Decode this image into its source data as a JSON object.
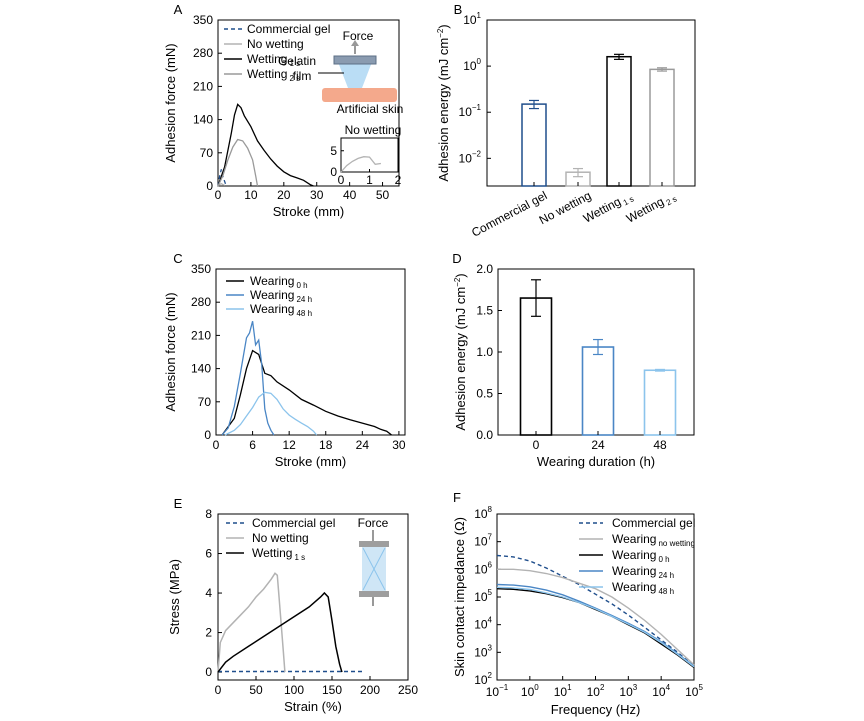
{
  "colors": {
    "black": "#000000",
    "blue": "#1f4e8c",
    "mid_blue": "#4a86c5",
    "light_blue": "#8cc4ec",
    "gray": "#9a9a9a",
    "light_gray": "#b3b3b3"
  },
  "chart_data": [
    {
      "id": "A",
      "type": "line",
      "panel_label": "A",
      "xlabel": "Stroke (mm)",
      "ylabel": "Adhesion force (mN)",
      "xlim": [
        0,
        55
      ],
      "ylim": [
        0,
        350
      ],
      "xticks": [
        "0",
        "10",
        "20",
        "30",
        "40",
        "50"
      ],
      "yticks": [
        "0",
        "70",
        "140",
        "210",
        "280",
        "350"
      ],
      "legend": [
        {
          "name": "Commercial gel",
          "sub": ""
        },
        {
          "name": "No wetting",
          "sub": ""
        },
        {
          "name": "Wetting",
          "sub": "1 s"
        },
        {
          "name": "Wetting",
          "sub": "2 s"
        }
      ],
      "series": [
        {
          "name": "Commercial gel",
          "x": [
            0,
            0.5,
            1,
            1.5,
            2,
            2.5
          ],
          "y": [
            0,
            20,
            35,
            20,
            10,
            0
          ]
        },
        {
          "name": "No wetting",
          "x": [
            0,
            0.5,
            1,
            1.5,
            2
          ],
          "y": [
            0,
            3,
            5,
            3,
            1
          ]
        },
        {
          "name": "Wetting 1 s",
          "x": [
            0,
            2,
            4,
            5,
            6,
            7,
            8,
            10,
            12,
            14,
            16,
            18,
            20,
            22,
            24,
            26,
            28,
            29
          ],
          "y": [
            0,
            40,
            110,
            150,
            172,
            165,
            148,
            125,
            95,
            75,
            57,
            42,
            30,
            22,
            17,
            12,
            3,
            0
          ]
        },
        {
          "name": "Wetting 2 s",
          "x": [
            0,
            1.5,
            3,
            4.5,
            6,
            7.5,
            9,
            10.5,
            11.5,
            12
          ],
          "y": [
            0,
            22,
            55,
            82,
            98,
            95,
            80,
            55,
            20,
            0
          ]
        }
      ],
      "annotations": [
        "Force",
        "Gelatin",
        "film",
        "Artificial skin"
      ],
      "inset": {
        "title": "No wetting",
        "xlim": [
          0,
          2
        ],
        "ylim": [
          0,
          8
        ],
        "xticks": [
          "0",
          "1",
          "2"
        ],
        "yticks": [
          "0",
          "5"
        ],
        "series": {
          "x": [
            0,
            0.2,
            0.4,
            0.6,
            0.8,
            1.0,
            1.2,
            1.4
          ],
          "y": [
            0,
            1.5,
            2.5,
            3.2,
            3.6,
            3.5,
            1.8,
            2.0
          ]
        }
      }
    },
    {
      "id": "B",
      "type": "bar",
      "panel_label": "B",
      "ylabel_main": "Adhesion energy (mJ cm",
      "ylabel_sup": "−2",
      "ylabel_end": ")",
      "yscale": "log",
      "ylim_exp": [
        -2.6,
        1
      ],
      "yticks": [
        {
          "b": "10",
          "e": "1"
        },
        {
          "b": "10",
          "e": "0"
        },
        {
          "b": "10",
          "e": "−1"
        },
        {
          "b": "10",
          "e": "−2"
        }
      ],
      "categories": [
        {
          "name": "Commercial gel",
          "sub": ""
        },
        {
          "name": "No wetting",
          "sub": ""
        },
        {
          "name": "Wetting",
          "sub": "1 s"
        },
        {
          "name": "Wetting",
          "sub": "2 s"
        }
      ],
      "values": [
        0.15,
        0.005,
        1.6,
        0.85
      ],
      "errors": [
        0.03,
        0.001,
        0.2,
        0.07
      ]
    },
    {
      "id": "C",
      "type": "line",
      "panel_label": "C",
      "xlabel": "Stroke (mm)",
      "ylabel": "Adhesion force (mN)",
      "xlim": [
        0,
        31
      ],
      "ylim": [
        0,
        350
      ],
      "xticks": [
        "0",
        "6",
        "12",
        "18",
        "24",
        "30"
      ],
      "yticks": [
        "0",
        "70",
        "140",
        "210",
        "280",
        "350"
      ],
      "legend": [
        {
          "name": "Wearing",
          "sub": "0 h"
        },
        {
          "name": "Wearing",
          "sub": "24 h"
        },
        {
          "name": "Wearing",
          "sub": "48 h"
        }
      ],
      "series": [
        {
          "name": "Wearing 0 h",
          "x": [
            1,
            3,
            4,
            5,
            6,
            7,
            8,
            9,
            10,
            12,
            14,
            16,
            18,
            20,
            22,
            24,
            26,
            27,
            28,
            28.8
          ],
          "y": [
            0,
            35,
            85,
            140,
            178,
            170,
            130,
            125,
            112,
            95,
            75,
            63,
            50,
            40,
            32,
            25,
            18,
            12,
            8,
            0
          ]
        },
        {
          "name": "Wearing 24 h",
          "x": [
            1,
            2,
            3,
            4,
            5,
            5.5,
            6,
            6.5,
            7,
            7.5,
            8,
            8.5,
            9,
            9.5
          ],
          "y": [
            0,
            15,
            60,
            130,
            205,
            215,
            240,
            190,
            200,
            150,
            55,
            25,
            10,
            0
          ]
        },
        {
          "name": "Wearing 48 h",
          "x": [
            1.5,
            3,
            4,
            5,
            6,
            7,
            8,
            9,
            10,
            11,
            12,
            13,
            14,
            15,
            16,
            16.5
          ],
          "y": [
            0,
            10,
            22,
            40,
            58,
            80,
            90,
            88,
            75,
            55,
            42,
            33,
            25,
            18,
            8,
            0
          ]
        }
      ]
    },
    {
      "id": "D",
      "type": "bar",
      "panel_label": "D",
      "xlabel": "Wearing duration (h)",
      "ylabel_main": "Adhesion energy (mJ cm",
      "ylabel_sup": "−2",
      "ylabel_end": ")",
      "ylim": [
        0,
        2.0
      ],
      "yticks": [
        "0.0",
        "0.5",
        "1.0",
        "1.5",
        "2.0"
      ],
      "categories": [
        "0",
        "24",
        "48"
      ],
      "values": [
        1.65,
        1.06,
        0.78
      ],
      "errors": [
        0.22,
        0.09,
        0.01
      ]
    },
    {
      "id": "E",
      "type": "line",
      "panel_label": "E",
      "xlabel": "Strain (%)",
      "ylabel": "Stress (MPa)",
      "xlim": [
        0,
        250
      ],
      "ylim": [
        0,
        8
      ],
      "xticks": [
        "0",
        "50",
        "100",
        "150",
        "200",
        "250"
      ],
      "yticks": [
        "0",
        "2",
        "4",
        "6",
        "8"
      ],
      "legend": [
        {
          "name": "Commercial gel",
          "sub": ""
        },
        {
          "name": "No wetting",
          "sub": ""
        },
        {
          "name": "Wetting",
          "sub": "1 s"
        }
      ],
      "annotations": [
        "Force"
      ],
      "series": [
        {
          "name": "Commercial gel",
          "x": [
            0,
            190
          ],
          "y": [
            0.03,
            0.03
          ]
        },
        {
          "name": "No wetting",
          "x": [
            0,
            3,
            10,
            20,
            30,
            40,
            50,
            60,
            70,
            75,
            78,
            82,
            86,
            88
          ],
          "y": [
            0,
            1.5,
            2.1,
            2.5,
            2.9,
            3.3,
            3.8,
            4.2,
            4.7,
            5.0,
            4.9,
            3.0,
            1.0,
            0
          ]
        },
        {
          "name": "Wetting 1 s",
          "x": [
            0,
            10,
            20,
            40,
            60,
            80,
            100,
            120,
            135,
            140,
            145,
            150,
            155,
            160,
            163
          ],
          "y": [
            0,
            0.5,
            0.8,
            1.3,
            1.8,
            2.3,
            2.8,
            3.3,
            3.8,
            4.0,
            3.8,
            2.6,
            1.3,
            0.4,
            0
          ]
        }
      ]
    },
    {
      "id": "F",
      "type": "line",
      "panel_label": "F",
      "xlabel": "Frequency (Hz)",
      "ylabel": "Skin contact impedance (Ω)",
      "xscale": "log",
      "yscale": "log",
      "xlim_exp": [
        -1,
        5
      ],
      "ylim_exp": [
        2,
        8
      ],
      "xticks": [
        {
          "b": "10",
          "e": "−1"
        },
        {
          "b": "10",
          "e": "0"
        },
        {
          "b": "10",
          "e": "1"
        },
        {
          "b": "10",
          "e": "2"
        },
        {
          "b": "10",
          "e": "3"
        },
        {
          "b": "10",
          "e": "4"
        },
        {
          "b": "10",
          "e": "5"
        }
      ],
      "yticks": [
        {
          "b": "10",
          "e": "2"
        },
        {
          "b": "10",
          "e": "3"
        },
        {
          "b": "10",
          "e": "4"
        },
        {
          "b": "10",
          "e": "5"
        },
        {
          "b": "10",
          "e": "6"
        },
        {
          "b": "10",
          "e": "7"
        },
        {
          "b": "10",
          "e": "8"
        }
      ],
      "legend": [
        {
          "name": "Commercial gel",
          "sub": ""
        },
        {
          "name": "Wearing",
          "sub": "no wetting"
        },
        {
          "name": "Wearing",
          "sub": "0 h"
        },
        {
          "name": "Wearing",
          "sub": "24 h"
        },
        {
          "name": "Wearing",
          "sub": "48 h"
        }
      ],
      "series": [
        {
          "name": "Commercial gel",
          "logx": [
            -1,
            -0.5,
            0,
            0.5,
            1,
            1.5,
            2,
            2.5,
            3,
            3.5,
            4,
            4.5,
            5
          ],
          "logy": [
            6.5,
            6.45,
            6.3,
            6.05,
            5.75,
            5.45,
            5.1,
            4.75,
            4.35,
            3.9,
            3.45,
            3.0,
            2.5
          ]
        },
        {
          "name": "Wearing no wetting",
          "logx": [
            -1,
            -0.5,
            0,
            0.5,
            1,
            1.5,
            2,
            2.5,
            3,
            3.5,
            4,
            4.5,
            5
          ],
          "logy": [
            6.0,
            6.0,
            5.95,
            5.85,
            5.7,
            5.5,
            5.3,
            5.0,
            4.6,
            4.15,
            3.65,
            3.1,
            2.55
          ]
        },
        {
          "name": "Wearing 0 h",
          "logx": [
            -1,
            -0.5,
            0,
            0.5,
            1,
            1.5,
            2,
            2.5,
            3,
            3.5,
            4,
            4.5,
            5
          ],
          "logy": [
            5.3,
            5.28,
            5.22,
            5.12,
            4.98,
            4.8,
            4.55,
            4.3,
            4.0,
            3.7,
            3.3,
            2.9,
            2.45
          ]
        },
        {
          "name": "Wearing 24 h",
          "logx": [
            -1,
            -0.5,
            0,
            0.5,
            1,
            1.5,
            2,
            2.5,
            3,
            3.5,
            4,
            4.5,
            5
          ],
          "logy": [
            5.45,
            5.43,
            5.37,
            5.25,
            5.08,
            4.85,
            4.6,
            4.33,
            4.05,
            3.75,
            3.38,
            2.95,
            2.5
          ]
        },
        {
          "name": "Wearing 48 h",
          "logx": [
            -1,
            -0.5,
            0,
            0.5,
            1,
            1.5,
            2,
            2.5,
            3,
            3.5,
            4,
            4.5,
            5
          ],
          "logy": [
            5.35,
            5.33,
            5.27,
            5.15,
            5.0,
            4.8,
            4.57,
            4.3,
            4.02,
            3.72,
            3.35,
            2.93,
            2.48
          ]
        }
      ]
    }
  ]
}
